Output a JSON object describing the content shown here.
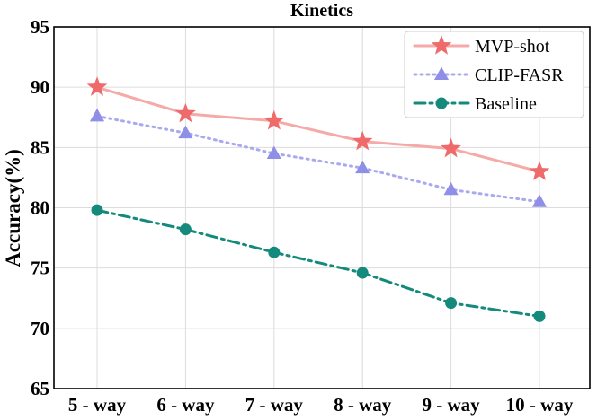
{
  "chart_data": {
    "type": "line",
    "title": "Kinetics",
    "xlabel": "",
    "ylabel": "Accuracy(%)",
    "categories": [
      "5 - way",
      "6 - way",
      "7 - way",
      "8 - way",
      "9 - way",
      "10 - way"
    ],
    "ylim": [
      65,
      95
    ],
    "yticks": [
      65,
      70,
      75,
      80,
      85,
      90,
      95
    ],
    "grid": true,
    "legend_position": "top-right",
    "series": [
      {
        "name": "MVP-shot",
        "values": [
          90.0,
          87.8,
          87.2,
          85.5,
          84.9,
          83.0
        ],
        "color": "#f5aaa8",
        "marker_color": "#ef6b6b",
        "marker": "star",
        "line_style": "solid"
      },
      {
        "name": "CLIP-FASR",
        "values": [
          87.6,
          86.2,
          84.5,
          83.3,
          81.5,
          80.5
        ],
        "color": "#a9a9ee",
        "marker_color": "#8f8fe8",
        "marker": "triangle",
        "line_style": "dotted"
      },
      {
        "name": "Baseline",
        "values": [
          79.8,
          78.2,
          76.3,
          74.6,
          72.1,
          71.0
        ],
        "color": "#138a7c",
        "marker_color": "#138a7c",
        "marker": "circle",
        "line_style": "dashdot"
      }
    ]
  }
}
